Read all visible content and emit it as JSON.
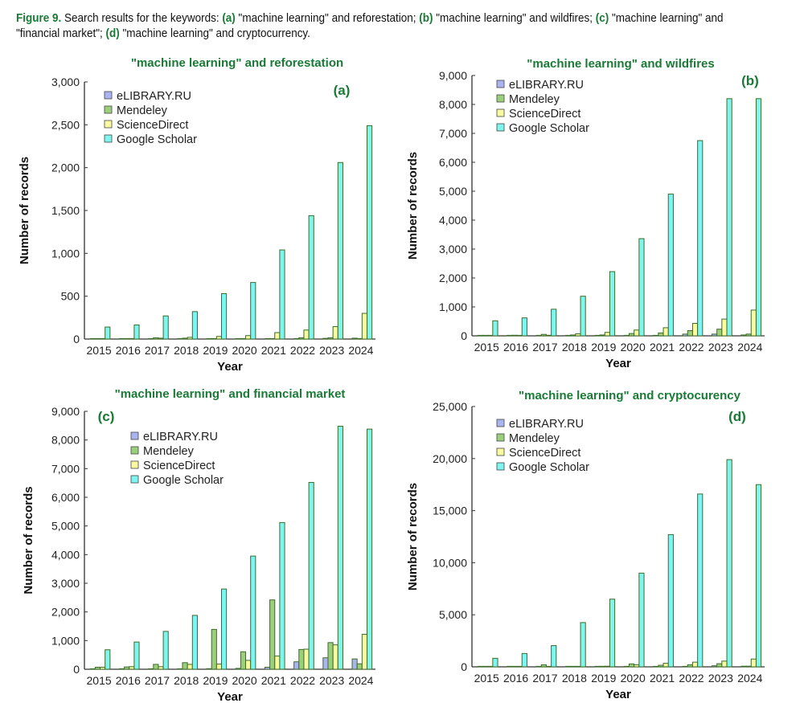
{
  "caption": {
    "figure_label": "Figure 9.",
    "intro": " Search results for the keywords: ",
    "a_label": "(a)",
    "a_text": " \"machine learning\" and reforestation; ",
    "b_label": "(b)",
    "b_text": " \"machine learning\" and wildfires; ",
    "c_label": "(c)",
    "c_text": " \"machine learning\" and \"financial market\"; ",
    "d_label": "(d)",
    "d_text": " \"machine learning\" and cryptocurrency."
  },
  "colors": {
    "eLIBRARY.RU": "#aab4f0",
    "Mendeley": "#9ccf7c",
    "ScienceDirect": "#fafaa0",
    "Google Scholar": "#7ff5f0",
    "bar_edge": "#3d6b2a",
    "title_green": "#1a7a35"
  },
  "chart_data": [
    {
      "type": "bar",
      "panel": "(a)",
      "title": "\"machine learning\" and reforestation",
      "xlabel": "Year",
      "ylabel": "Number of records",
      "categories": [
        "2015",
        "2016",
        "2017",
        "2018",
        "2019",
        "2020",
        "2021",
        "2022",
        "2023",
        "2024"
      ],
      "ylim": [
        0,
        3000
      ],
      "yticks": [
        0,
        500,
        1000,
        1500,
        2000,
        2500,
        3000
      ],
      "ytick_labels": [
        "0",
        "500",
        "1,000",
        "1,500",
        "2,000",
        "2,500",
        "3,000"
      ],
      "legend": "top-left",
      "grid": false,
      "series": [
        {
          "name": "eLIBRARY.RU",
          "values": [
            0,
            0,
            2,
            3,
            3,
            2,
            3,
            4,
            8,
            10
          ]
        },
        {
          "name": "Mendeley",
          "values": [
            5,
            5,
            15,
            10,
            5,
            2,
            5,
            15,
            15,
            5
          ]
        },
        {
          "name": "ScienceDirect",
          "values": [
            2,
            0,
            10,
            20,
            30,
            40,
            75,
            105,
            145,
            300
          ]
        },
        {
          "name": "Google Scholar",
          "values": [
            140,
            165,
            270,
            320,
            530,
            660,
            1040,
            1440,
            2060,
            2490
          ]
        }
      ]
    },
    {
      "type": "bar",
      "panel": "(b)",
      "title": "\"machine learning\" and wildfires",
      "xlabel": "Year",
      "ylabel": "Number of records",
      "categories": [
        "2015",
        "2016",
        "2017",
        "2018",
        "2019",
        "2020",
        "2021",
        "2022",
        "2023",
        "2024"
      ],
      "ylim": [
        0,
        9000
      ],
      "yticks": [
        0,
        1000,
        2000,
        3000,
        4000,
        5000,
        6000,
        7000,
        8000,
        9000
      ],
      "ytick_labels": [
        "0",
        "1,000",
        "2,000",
        "3,000",
        "4,000",
        "5,000",
        "6,000",
        "7,000",
        "8,000",
        "9,000"
      ],
      "legend": "top-left",
      "grid": false,
      "series": [
        {
          "name": "eLIBRARY.RU",
          "values": [
            5,
            5,
            5,
            5,
            5,
            5,
            10,
            60,
            60,
            30
          ]
        },
        {
          "name": "Mendeley",
          "values": [
            5,
            20,
            50,
            30,
            30,
            80,
            100,
            180,
            230,
            60
          ]
        },
        {
          "name": "ScienceDirect",
          "values": [
            10,
            10,
            20,
            70,
            120,
            200,
            280,
            430,
            580,
            890
          ]
        },
        {
          "name": "Google Scholar",
          "values": [
            520,
            620,
            920,
            1370,
            2220,
            3360,
            4900,
            6750,
            8200,
            8200
          ]
        }
      ]
    },
    {
      "type": "bar",
      "panel": "(c)",
      "title": "\"machine learning\" and financial market",
      "xlabel": "Year",
      "ylabel": "Number of records",
      "categories": [
        "2015",
        "2016",
        "2017",
        "2018",
        "2019",
        "2020",
        "2021",
        "2022",
        "2023",
        "2024"
      ],
      "ylim": [
        0,
        9000
      ],
      "yticks": [
        0,
        1000,
        2000,
        3000,
        4000,
        5000,
        6000,
        7000,
        8000,
        9000
      ],
      "ytick_labels": [
        "0",
        "1,000",
        "2,000",
        "3,000",
        "4,000",
        "5,000",
        "6,000",
        "7,000",
        "8,000",
        "9,000"
      ],
      "legend": "top-left",
      "grid": false,
      "series": [
        {
          "name": "eLIBRARY.RU",
          "values": [
            10,
            10,
            10,
            15,
            20,
            30,
            70,
            260,
            400,
            360
          ]
        },
        {
          "name": "Mendeley",
          "values": [
            70,
            80,
            170,
            230,
            1390,
            610,
            2420,
            690,
            930,
            190
          ]
        },
        {
          "name": "ScienceDirect",
          "values": [
            70,
            90,
            90,
            170,
            180,
            310,
            460,
            700,
            850,
            1220
          ]
        },
        {
          "name": "Google Scholar",
          "values": [
            680,
            950,
            1320,
            1880,
            2800,
            3950,
            5120,
            6520,
            8480,
            8380
          ]
        }
      ]
    },
    {
      "type": "bar",
      "panel": "(d)",
      "title": "\"machine learning\" and cryptocurency",
      "xlabel": "Year",
      "ylabel": "Number of records",
      "categories": [
        "2015",
        "2016",
        "2017",
        "2018",
        "2019",
        "2020",
        "2021",
        "2022",
        "2023",
        "2024"
      ],
      "ylim": [
        0,
        25000
      ],
      "yticks": [
        0,
        5000,
        10000,
        15000,
        20000,
        25000
      ],
      "ytick_labels": [
        "0",
        "5,000",
        "10,000",
        "15,000",
        "20,000",
        "25,000"
      ],
      "legend": "top-left",
      "grid": false,
      "series": [
        {
          "name": "eLIBRARY.RU",
          "values": [
            10,
            10,
            10,
            10,
            20,
            20,
            20,
            40,
            100,
            60
          ]
        },
        {
          "name": "Mendeley",
          "values": [
            10,
            20,
            200,
            10,
            50,
            280,
            150,
            200,
            300,
            60
          ]
        },
        {
          "name": "ScienceDirect",
          "values": [
            10,
            10,
            10,
            20,
            60,
            200,
            340,
            450,
            550,
            750
          ]
        },
        {
          "name": "Google Scholar",
          "values": [
            820,
            1280,
            2040,
            4250,
            6500,
            9000,
            12700,
            16600,
            19900,
            17500
          ]
        }
      ]
    }
  ]
}
